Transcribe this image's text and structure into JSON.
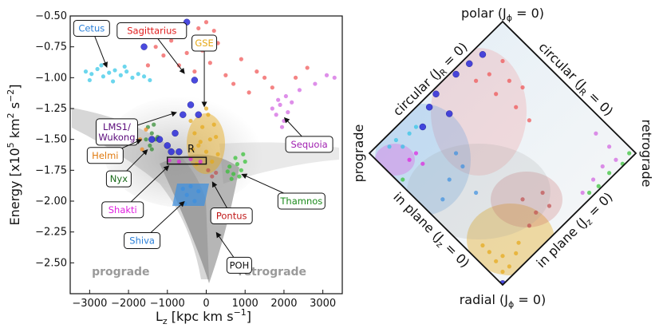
{
  "chart_data": [
    {
      "type": "scatter",
      "panel": "energy-angular-momentum",
      "xlabel": "L_z [kpc km s^-1]",
      "ylabel": "Energy [x10^5 km^2 s^-2]",
      "xlim": [
        -3500,
        3500
      ],
      "ylim": [
        -2.75,
        -0.5
      ],
      "x_ticks": [
        -3000,
        -2000,
        -1000,
        0,
        1000,
        2000,
        3000
      ],
      "x_tick_labels": [
        "−3000",
        "−2000",
        "−1000",
        "0",
        "1000",
        "2000",
        "3000"
      ],
      "y_ticks": [
        -0.5,
        -0.75,
        -1.0,
        -1.25,
        -1.5,
        -1.75,
        -2.0,
        -2.25,
        -2.5
      ],
      "y_tick_labels": [
        "−0.50",
        "−0.75",
        "−1.00",
        "−1.25",
        "−1.50",
        "−1.75",
        "−2.00",
        "−2.25",
        "−2.50"
      ],
      "watermarks": {
        "prograde": "prograde",
        "retrograde": "retrograde"
      },
      "region_label": "R",
      "region_box": {
        "x": [
          -1000,
          0
        ],
        "y": [
          -1.7,
          -1.645
        ]
      },
      "series": [
        {
          "name": "Cetus",
          "color": "#2ec4e6",
          "points": [
            [
              -3100,
              -0.95
            ],
            [
              -2950,
              -0.97
            ],
            [
              -2800,
              -0.93
            ],
            [
              -2650,
              -0.99
            ],
            [
              -2500,
              -0.96
            ],
            [
              -2350,
              -0.94
            ],
            [
              -2200,
              -0.98
            ],
            [
              -2050,
              -0.95
            ],
            [
              -1900,
              -1.0
            ],
            [
              -1750,
              -0.97
            ],
            [
              -1600,
              -0.99
            ],
            [
              -1450,
              -1.02
            ],
            [
              -3000,
              -1.02
            ],
            [
              -2700,
              -0.9
            ],
            [
              -2400,
              -1.03
            ],
            [
              -2100,
              -0.91
            ]
          ]
        },
        {
          "name": "Sagittarius",
          "color": "#f05050",
          "points": [
            [
              -1300,
              -0.75
            ],
            [
              -1100,
              -0.82
            ],
            [
              -900,
              -0.7
            ],
            [
              -700,
              -0.9
            ],
            [
              -500,
              -0.8
            ],
            [
              -300,
              -0.95
            ],
            [
              -100,
              -0.78
            ],
            [
              100,
              -0.88
            ],
            [
              300,
              -0.72
            ],
            [
              500,
              -0.98
            ],
            [
              700,
              -1.05
            ],
            [
              900,
              -0.85
            ],
            [
              1100,
              -1.12
            ],
            [
              1300,
              -0.95
            ],
            [
              1500,
              -1.0
            ],
            [
              1700,
              -1.08
            ],
            [
              -200,
              -0.6
            ],
            [
              200,
              -0.62
            ],
            [
              0,
              -0.55
            ],
            [
              -1500,
              -0.9
            ],
            [
              2300,
              -1.0
            ],
            [
              2600,
              -0.92
            ]
          ]
        },
        {
          "name": "GSE",
          "color": "#e6a817",
          "points": [
            [
              -400,
              -1.35
            ],
            [
              -300,
              -1.45
            ],
            [
              -200,
              -1.55
            ],
            [
              -100,
              -1.4
            ],
            [
              0,
              -1.6
            ],
            [
              100,
              -1.5
            ],
            [
              200,
              -1.38
            ],
            [
              300,
              -1.62
            ],
            [
              -250,
              -1.7
            ],
            [
              50,
              -1.3
            ],
            [
              150,
              -1.68
            ],
            [
              -350,
              -1.58
            ],
            [
              250,
              -1.48
            ],
            [
              0,
              -1.25
            ],
            [
              -150,
              -1.52
            ]
          ]
        },
        {
          "name": "Sequoia",
          "color": "#d060e0",
          "points": [
            [
              1700,
              -1.25
            ],
            [
              1800,
              -1.3
            ],
            [
              1900,
              -1.22
            ],
            [
              2000,
              -1.35
            ],
            [
              2100,
              -1.28
            ],
            [
              2200,
              -1.2
            ],
            [
              1950,
              -1.4
            ],
            [
              1850,
              -1.18
            ],
            [
              2050,
              -1.15
            ],
            [
              2400,
              -1.1
            ],
            [
              2800,
              -1.05
            ],
            [
              3100,
              -0.98
            ],
            [
              3300,
              -1.0
            ]
          ]
        },
        {
          "name": "Thamnos",
          "color": "#30c030",
          "points": [
            [
              600,
              -1.72
            ],
            [
              700,
              -1.78
            ],
            [
              800,
              -1.7
            ],
            [
              900,
              -1.75
            ],
            [
              1000,
              -1.68
            ],
            [
              650,
              -1.82
            ],
            [
              750,
              -1.65
            ],
            [
              850,
              -1.8
            ],
            [
              550,
              -1.76
            ],
            [
              950,
              -1.62
            ]
          ]
        },
        {
          "name": "Nyx",
          "color": "#2e8a2e",
          "points": [
            [
              -1500,
              -1.4
            ],
            [
              -1400,
              -1.45
            ],
            [
              -1300,
              -1.5
            ],
            [
              -1450,
              -1.55
            ],
            [
              -1350,
              -1.38
            ],
            [
              -1250,
              -1.48
            ],
            [
              -1550,
              -1.5
            ],
            [
              -1400,
              -1.58
            ]
          ]
        },
        {
          "name": "Helmi",
          "color": "#f08a1a",
          "points": [
            [
              -1700,
              -1.5
            ],
            [
              -1550,
              -1.42
            ],
            [
              -1650,
              -1.58
            ]
          ]
        },
        {
          "name": "LMS1/Wukong",
          "color": "#2a2ad8",
          "points": [
            [
              -800,
              -1.45
            ],
            [
              -600,
              -1.3
            ],
            [
              -1000,
              -1.55
            ],
            [
              -700,
              -1.6
            ],
            [
              -400,
              -1.22
            ],
            [
              -1200,
              -1.5
            ],
            [
              -300,
              -1.02
            ],
            [
              -500,
              -0.55
            ],
            [
              -1400,
              -1.5
            ],
            [
              -900,
              -1.6
            ],
            [
              -1600,
              -0.75
            ],
            [
              -200,
              -1.3
            ]
          ]
        },
        {
          "name": "Shiva",
          "color": "#3b8fe0",
          "points": [
            [
              -600,
              -1.9
            ],
            [
              -500,
              -1.95
            ],
            [
              -400,
              -1.88
            ],
            [
              -300,
              -2.0
            ],
            [
              -200,
              -1.92
            ],
            [
              -550,
              -2.02
            ]
          ]
        },
        {
          "name": "Shakti",
          "color": "#e020e0",
          "points": [
            [
              -950,
              -1.67
            ],
            [
              -700,
              -1.68
            ],
            [
              -400,
              -1.66
            ],
            [
              -150,
              -1.68
            ]
          ]
        },
        {
          "name": "Pontus",
          "color": "#c05050",
          "points": [
            [
              50,
              -1.75
            ],
            [
              150,
              -1.8
            ],
            [
              250,
              -1.77
            ]
          ]
        }
      ],
      "annotations": [
        {
          "name": "Cetus",
          "text": "Cetus",
          "text_color": "#2a7fd8",
          "x": -2950,
          "y": -0.6,
          "target": [
            -2550,
            -0.92
          ]
        },
        {
          "name": "Sagittarius",
          "text": "Sagittarius",
          "text_color": "#e01c1c",
          "x": -1400,
          "y": -0.62,
          "target": [
            -550,
            -0.97
          ]
        },
        {
          "name": "GSE",
          "text": "GSE",
          "text_color": "#e6a817",
          "x": -50,
          "y": -0.72,
          "target": [
            -50,
            -1.24
          ]
        },
        {
          "name": "LMS1/Wukong",
          "text": "LMS1/ Wukong",
          "text_color": "#5a0a7a",
          "x": -2300,
          "y": -1.44,
          "target": [
            -750,
            -1.28
          ]
        },
        {
          "name": "Sequoia",
          "text": "Sequoia",
          "text_color": "#a020b0",
          "x": 2650,
          "y": -1.54,
          "target": [
            2000,
            -1.32
          ]
        },
        {
          "name": "Helmi",
          "text": "Helmi",
          "text_color": "#e07a10",
          "x": -2600,
          "y": -1.63,
          "target": [
            -1650,
            -1.5
          ]
        },
        {
          "name": "Nyx",
          "text": "Nyx",
          "text_color": "#1a6a1a",
          "x": -2250,
          "y": -1.82,
          "target": [
            -1500,
            -1.58
          ]
        },
        {
          "name": "Thamnos",
          "text": "Thamnos",
          "text_color": "#1a8a1a",
          "x": 2450,
          "y": -2.0,
          "target": [
            900,
            -1.78
          ]
        },
        {
          "name": "Shakti",
          "text": "Shakti",
          "text_color": "#e020e0",
          "x": -2150,
          "y": -2.07,
          "target": [
            -950,
            -1.71
          ]
        },
        {
          "name": "Pontus",
          "text": "Pontus",
          "text_color": "#c01a1a",
          "x": 650,
          "y": -2.12,
          "target": [
            150,
            -1.84
          ]
        },
        {
          "name": "Shiva",
          "text": "Shiva",
          "text_color": "#2a7fd8",
          "x": -1650,
          "y": -2.32,
          "target": [
            -550,
            -2.0
          ]
        },
        {
          "name": "POH",
          "text": "POH",
          "text_color": "#111111",
          "x": 850,
          "y": -2.52,
          "target": [
            250,
            -2.25
          ]
        }
      ]
    },
    {
      "type": "scatter",
      "panel": "action-diamond",
      "corner_labels": {
        "top": "polar (J_ϕ = 0)",
        "bottom": "radial (J_ϕ = 0)",
        "left": "prograde",
        "right": "retrograde"
      },
      "edge_labels": {
        "upper_left": "circular (J_R = 0)",
        "upper_right": "circular (J_R = 0)",
        "lower_left": "in plane (J_z = 0)",
        "lower_right": "in plane (J_z = 0)"
      },
      "x_range": [
        -1,
        1
      ],
      "y_range": [
        -1,
        1
      ],
      "series": [
        {
          "name": "GSE",
          "color": "#e6a817",
          "points": [
            [
              -0.05,
              -0.82
            ],
            [
              0.05,
              -0.86
            ],
            [
              0.0,
              -0.78
            ],
            [
              -0.1,
              -0.75
            ],
            [
              0.1,
              -0.76
            ],
            [
              0.0,
              -0.9
            ],
            [
              -0.15,
              -0.7
            ],
            [
              0.12,
              -0.68
            ]
          ]
        },
        {
          "name": "Sagittarius",
          "color": "#f05050",
          "points": [
            [
              -0.1,
              0.6
            ],
            [
              0.0,
              0.7
            ],
            [
              0.05,
              0.55
            ],
            [
              -0.05,
              0.45
            ],
            [
              0.1,
              0.35
            ],
            [
              0.2,
              0.25
            ],
            [
              0.15,
              0.5
            ],
            [
              -0.2,
              0.55
            ]
          ]
        },
        {
          "name": "LMS1/Wukong",
          "color": "#2a2ad8",
          "points": [
            [
              -0.55,
              0.35
            ],
            [
              -0.5,
              0.45
            ],
            [
              -0.35,
              0.6
            ],
            [
              -0.25,
              0.68
            ],
            [
              -0.6,
              0.2
            ],
            [
              -0.15,
              0.75
            ],
            [
              -0.4,
              0.3
            ],
            [
              0.0,
              -0.99
            ]
          ]
        },
        {
          "name": "Sequoia",
          "color": "#d060e0",
          "points": [
            [
              0.7,
              0.15
            ],
            [
              0.75,
              -0.1
            ],
            [
              0.8,
              0.05
            ],
            [
              0.68,
              -0.2
            ],
            [
              0.85,
              -0.05
            ],
            [
              0.6,
              -0.3
            ]
          ]
        },
        {
          "name": "Thamnos",
          "color": "#30c030",
          "points": [
            [
              0.8,
              -0.15
            ],
            [
              0.9,
              -0.08
            ],
            [
              0.72,
              -0.25
            ],
            [
              0.95,
              0.0
            ],
            [
              0.65,
              -0.3
            ],
            [
              -0.75,
              -0.2
            ]
          ]
        },
        {
          "name": "Cetus",
          "color": "#2ec4e6",
          "points": [
            [
              -0.8,
              0.1
            ],
            [
              -0.7,
              0.15
            ],
            [
              -0.75,
              0.05
            ],
            [
              -0.65,
              0.2
            ],
            [
              -0.85,
              0.05
            ]
          ]
        },
        {
          "name": "Shiva",
          "color": "#3b8fe0",
          "points": [
            [
              -0.4,
              -0.2
            ],
            [
              -0.3,
              -0.1
            ],
            [
              -0.45,
              -0.35
            ],
            [
              -0.2,
              -0.3
            ],
            [
              -0.35,
              0.0
            ]
          ]
        },
        {
          "name": "Pontus",
          "color": "#c05050",
          "points": [
            [
              0.15,
              -0.35
            ],
            [
              0.25,
              -0.45
            ],
            [
              0.3,
              -0.3
            ],
            [
              0.2,
              -0.55
            ],
            [
              0.35,
              -0.4
            ]
          ]
        },
        {
          "name": "Shakti",
          "color": "#e020e0",
          "points": [
            [
              -0.65,
              0.0
            ],
            [
              -0.7,
              -0.05
            ],
            [
              -0.6,
              -0.08
            ]
          ]
        }
      ]
    }
  ]
}
